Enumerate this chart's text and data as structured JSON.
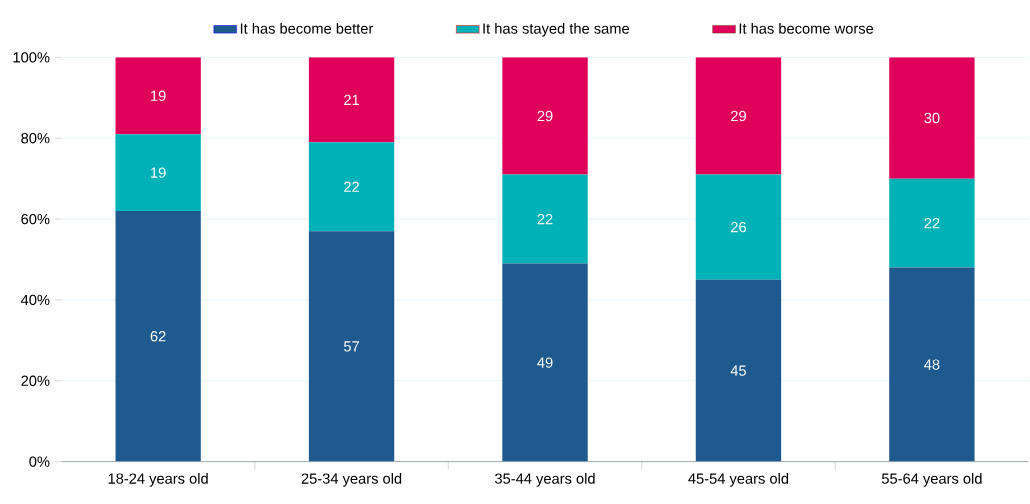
{
  "chart_data": {
    "type": "bar",
    "stacked": true,
    "categories": [
      "18-24 years old",
      "25-34 years old",
      "35-44 years old",
      "45-54 years old",
      "55-64 years old"
    ],
    "series": [
      {
        "name": "It has become better",
        "color": "#1f5a8f",
        "values": [
          62,
          57,
          49,
          45,
          48
        ]
      },
      {
        "name": "It has stayed the same",
        "color": "#00b1b8",
        "values": [
          19,
          22,
          22,
          26,
          22
        ]
      },
      {
        "name": "It has become worse",
        "color": "#df005a",
        "values": [
          19,
          21,
          29,
          29,
          30
        ]
      }
    ],
    "ylim": [
      0,
      100
    ],
    "yticks": [
      {
        "value": 0,
        "label": "0%"
      },
      {
        "value": 20,
        "label": "20%"
      },
      {
        "value": 40,
        "label": "40%"
      },
      {
        "value": 60,
        "label": "60%"
      },
      {
        "value": 80,
        "label": "80%"
      },
      {
        "value": 100,
        "label": "100%"
      }
    ],
    "grid": "y",
    "legend": "top",
    "data_labels": true
  }
}
